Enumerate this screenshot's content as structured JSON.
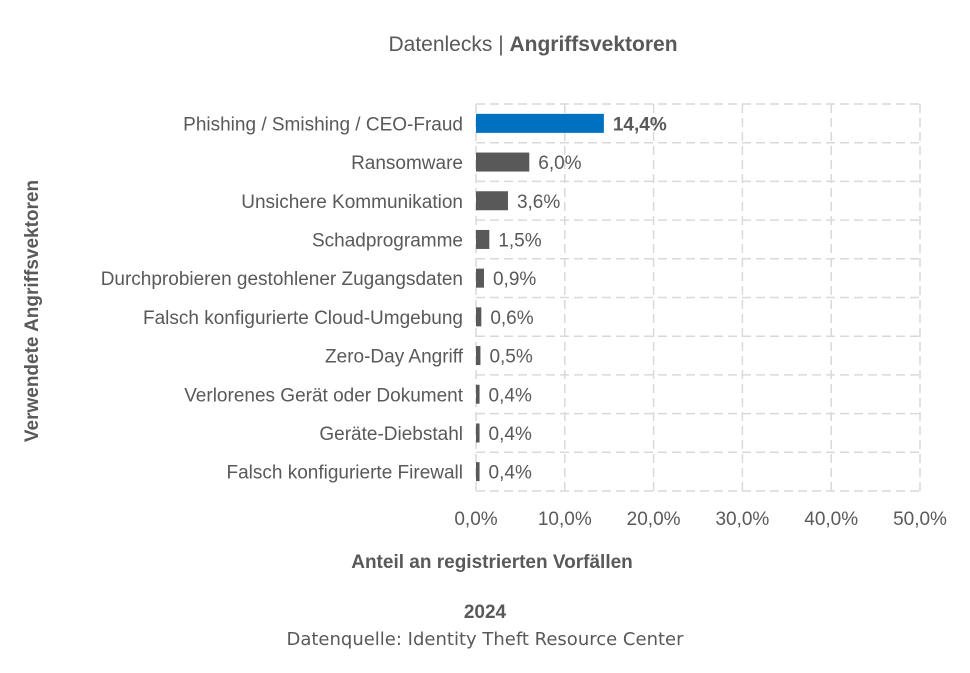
{
  "chart_data": {
    "type": "bar",
    "orientation": "horizontal",
    "title_prefix": "Datenlecks",
    "title_separator": " | ",
    "title_main": "Angriffsvektoren",
    "categories": [
      "Phishing / Smishing / CEO-Fraud",
      "Ransomware",
      "Unsichere Kommunikation",
      "Schadprogramme",
      "Durchprobieren gestohlener Zugangsdaten",
      "Falsch konfigurierte Cloud-Umgebung",
      "Zero-Day Angriff",
      "Verlorenes Gerät oder Dokument",
      "Geräte-Diebstahl",
      "Falsch konfigurierte Firewall"
    ],
    "values": [
      14.4,
      6.0,
      3.6,
      1.5,
      0.9,
      0.6,
      0.5,
      0.4,
      0.4,
      0.4
    ],
    "value_labels": [
      "14,4%",
      "6,0%",
      "3,6%",
      "1,5%",
      "0,9%",
      "0,6%",
      "0,5%",
      "0,4%",
      "0,4%",
      "0,4%"
    ],
    "highlight_index": 0,
    "colors": {
      "highlight": "#0070c0",
      "default": "#595959"
    },
    "xlim": [
      0,
      50
    ],
    "xticks": [
      0,
      10,
      20,
      30,
      40,
      50
    ],
    "xtick_labels": [
      "0,0%",
      "10,0%",
      "20,0%",
      "30,0%",
      "40,0%",
      "50,0%"
    ],
    "xlabel": "Anteil an registrierten Vorfällen",
    "ylabel": "Verwendete Angriffsvektoren",
    "grid": true,
    "legend": "none"
  },
  "footer": {
    "year": "2024",
    "source": "Datenquelle: Identity Theft Resource Center"
  }
}
